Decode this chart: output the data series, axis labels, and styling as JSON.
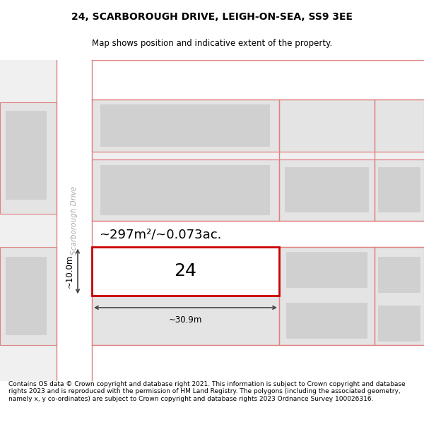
{
  "title": "24, SCARBOROUGH DRIVE, LEIGH-ON-SEA, SS9 3EE",
  "subtitle": "Map shows position and indicative extent of the property.",
  "footer": "Contains OS data © Crown copyright and database right 2021. This information is subject to Crown copyright and database rights 2023 and is reproduced with the permission of HM Land Registry. The polygons (including the associated geometry, namely x, y co-ordinates) are subject to Crown copyright and database rights 2023 Ordnance Survey 100026316.",
  "bg_color": "#f0f0f0",
  "road_color": "#ffffff",
  "plot_fill": "#e4e4e4",
  "plot_inner_fill": "#d0d0d0",
  "subject_fill": "#ffffff",
  "subject_outline": "#cc0000",
  "road_line_color": "#e08080",
  "dim_line_color": "#444444",
  "area_text": "~297m²/~0.073ac.",
  "number_text": "24",
  "width_text": "~30.9m",
  "height_text": "~10.0m",
  "street_label": "Scarborough Drive",
  "title_fontsize": 10,
  "subtitle_fontsize": 8.5,
  "footer_fontsize": 6.5,
  "area_fontsize": 13,
  "number_fontsize": 18,
  "dim_fontsize": 8.5,
  "street_fontsize": 7.5
}
